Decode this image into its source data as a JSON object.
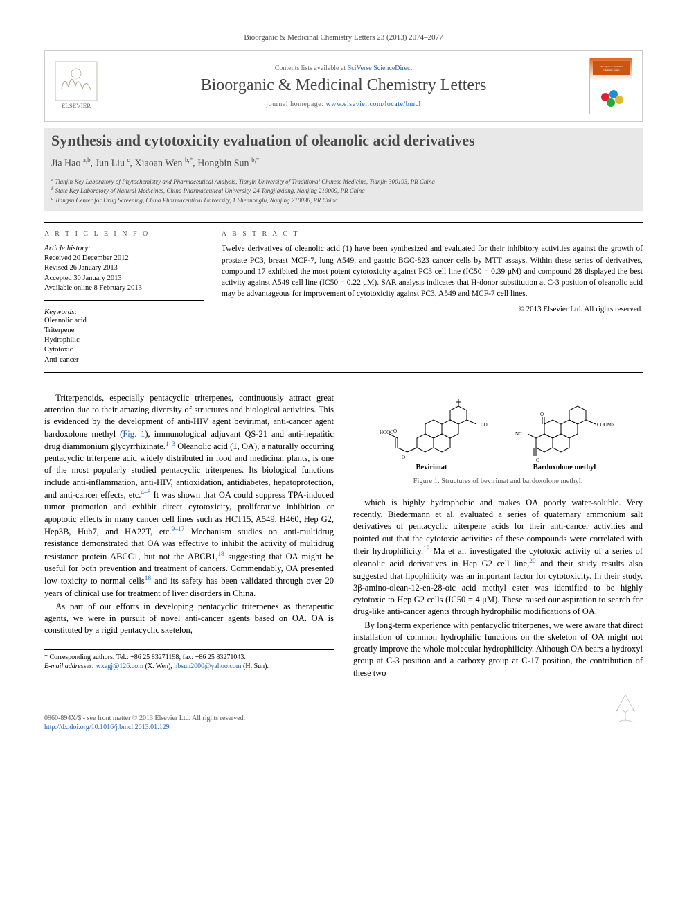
{
  "journal_ref": "Bioorganic & Medicinal Chemistry Letters 23 (2013) 2074–2077",
  "header": {
    "contents_prefix": "Contents lists available at ",
    "contents_link": "SciVerse ScienceDirect",
    "journal_name": "Bioorganic & Medicinal Chemistry Letters",
    "homepage_prefix": "journal homepage: ",
    "homepage_url": "www.elsevier.com/locate/bmcl"
  },
  "article": {
    "title": "Synthesis and cytotoxicity evaluation of oleanolic acid derivatives",
    "authors_html": "Jia Hao <sup>a,b</sup>, Jun Liu <sup>c</sup>, Xiaoan Wen <sup>b,*</sup>, Hongbin Sun <sup>b,*</sup>",
    "affiliations": [
      "a Tianjin Key Laboratory of Phytochemistry and Pharmaceutical Analysis, Tianjin University of Traditional Chinese Medicine, Tianjin 300193, PR China",
      "b State Key Laboratory of Natural Medicines, China Pharmaceutical University, 24 Tongjiaxiang, Nanjing 210009, PR China",
      "c Jiangsu Center for Drug Screening, China Pharmaceutical University, 1 Shennonglu, Nanjing 210038, PR China"
    ]
  },
  "info": {
    "heading": "A R T I C L E   I N F O",
    "history_hd": "Article history:",
    "history": [
      "Received 20 December 2012",
      "Revised 26 January 2013",
      "Accepted 30 January 2013",
      "Available online 8 February 2013"
    ],
    "keywords_hd": "Keywords:",
    "keywords": [
      "Oleanolic acid",
      "Triterpene",
      "Hydrophilic",
      "Cytotoxic",
      "Anti-cancer"
    ]
  },
  "abstract": {
    "heading": "A B S T R A C T",
    "text": "Twelve derivatives of oleanolic acid (1) have been synthesized and evaluated for their inhibitory activities against the growth of prostate PC3, breast MCF-7, lung A549, and gastric BGC-823 cancer cells by MTT assays. Within these series of derivatives, compound 17 exhibited the most potent cytotoxicity against PC3 cell line (IC50 = 0.39 μM) and compound 28 displayed the best activity against A549 cell line (IC50 = 0.22 μM). SAR analysis indicates that H-donor substitution at C-3 position of oleanolic acid may be advantageous for improvement of cytotoxicity against PC3, A549 and MCF-7 cell lines.",
    "copyright": "© 2013 Elsevier Ltd. All rights reserved."
  },
  "body": {
    "col1": {
      "p1_a": "Triterpenoids, especially pentacyclic triterpenes, continuously attract great attention due to their amazing diversity of structures and biological activities. This is evidenced by the development of anti-HIV agent bevirimat, anti-cancer agent bardoxolone methyl (",
      "p1_fig": "Fig. 1",
      "p1_b": "), immunological adjuvant QS-21 and anti-hepatitic drug diammonium glycyrrhizinate.",
      "p1_ref1": "1–3",
      "p1_c": " Oleanolic acid (1, OA), a naturally occurring pentacyclic triterpene acid widely distributed in food and medicinal plants, is one of the most popularly studied pentacyclic triterpenes. Its biological functions include anti-inflammation, anti-HIV, antioxidation, antidiabetes, hepatoprotection, and anti-cancer effects, etc.",
      "p1_ref2": "4–8",
      "p1_d": " It was shown that OA could suppress TPA-induced tumor promotion and exhibit direct cytotoxicity, proliferative inhibition or apoptotic effects in many cancer cell lines such as HCT15, A549, H460, Hep G2, Hep3B, Huh7, and HA22T, etc.",
      "p1_ref3": "9–17",
      "p1_e": " Mechanism studies on anti-multidrug resistance demonstrated that OA was effective to inhibit the activity of multidrug resistance protein ABCC1, but not the ABCB1,",
      "p1_ref4": "18",
      "p1_f": " suggesting that OA might be useful for both prevention and treatment of cancers. Commendably, OA presented low toxicity to normal cells",
      "p1_ref5": "18",
      "p1_g": " and its safety has been validated through over 20 years of clinical use for treatment of liver disorders in China.",
      "p2": "As part of our efforts in developing pentacyclic triterpenes as therapeutic agents, we were in pursuit of novel anti-cancer agents based on OA. OA is constituted by a rigid pentacyclic sketelon,"
    },
    "col2": {
      "p1_a": "which is highly hydrophobic and makes OA poorly water-soluble. Very recently, Biedermann et al. evaluated a series of quaternary ammonium salt derivatives of pentacyclic triterpene acids for their anti-cancer activities and pointed out that the cytotoxic activities of these compounds were correlated with their hydrophilicity.",
      "p1_ref1": "19",
      "p1_b": " Ma et al. investigated the cytotoxic activity of a series of oleanolic acid derivatives in Hep G2 cell line,",
      "p1_ref2": "20",
      "p1_c": " and their study results also suggested that lipophilicity was an important factor for cytotoxicity. In their study, 3β-amino-olean-12-en-28-oic acid methyl ester was identified to be highly cytotoxic to Hep G2 cells (IC50 = 4 μM). These raised our aspiration to search for drug-like anti-cancer agents through hydrophilic modifications of OA.",
      "p2": "By long-term experience with pentacyclic triterpenes, we were aware that direct installation of common hydrophilic functions on the skeleton of OA might not greatly improve the whole molecular hydrophilicity. Although OA bears a hydroxyl group at C-3 position and a carboxy group at C-17 position, the contribution of these two"
    }
  },
  "figure1": {
    "label_a": "Bevirimat",
    "label_b": "Bardoxolone methyl",
    "caption": "Figure 1. Structures of bevirimat and bardoxolone methyl.",
    "stroke": "#000000",
    "width_a": 170,
    "height_a": 100,
    "width_b": 170,
    "height_b": 100
  },
  "footnotes": {
    "corr": "* Corresponding authors. Tel.: +86 25 83271198; fax: +86 25 83271043.",
    "email_prefix": "E-mail addresses: ",
    "email1": "wxagj@126.com",
    "email1_who": " (X. Wen), ",
    "email2": "hbsun2000@yahoo.com",
    "email2_who": " (H. Sun)."
  },
  "bottom": {
    "issn": "0960-894X/$ - see front matter © 2013 Elsevier Ltd. All rights reserved.",
    "doi_label": "http://dx.doi.org/",
    "doi": "10.1016/j.bmcl.2013.01.129"
  },
  "colors": {
    "link": "#2060b0",
    "text": "#000000",
    "band_bg": "#e8e8e8",
    "rule": "#000000"
  }
}
